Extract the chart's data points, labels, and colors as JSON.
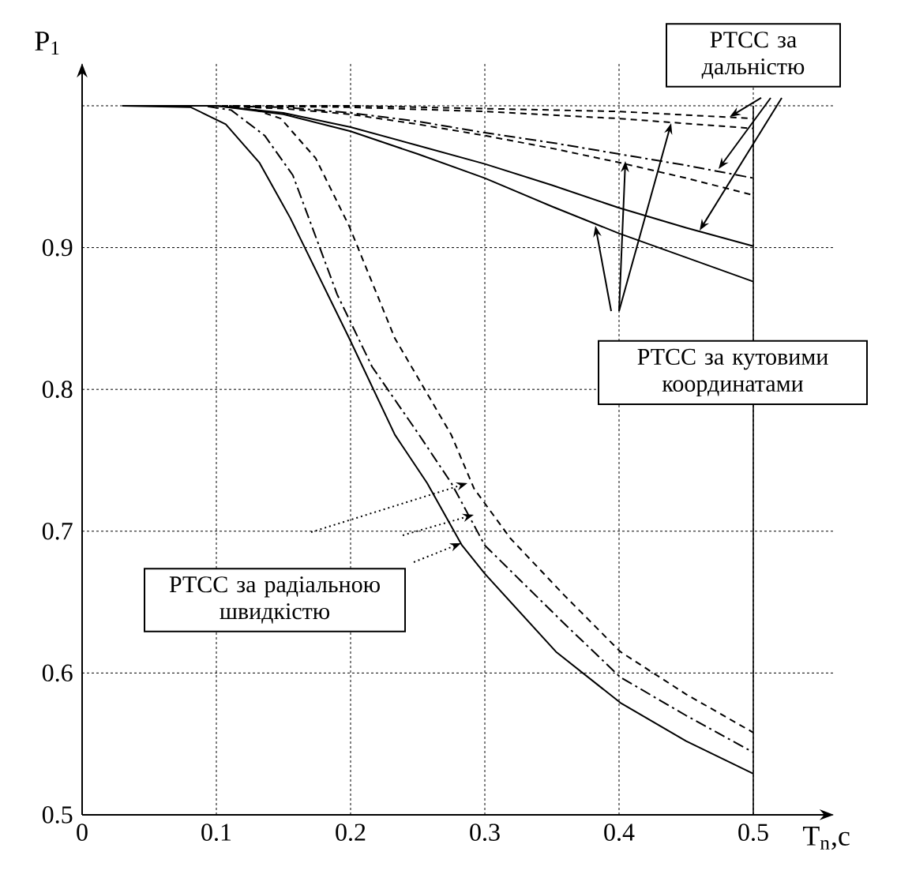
{
  "chart_data": {
    "type": "line",
    "xlabel": "T$_{n}$,c",
    "ylabel": "P$_{1}$",
    "xlim": [
      0,
      0.56
    ],
    "ylim": [
      0.5,
      1.03
    ],
    "ref_lines": [
      {
        "axis": "x",
        "value": 0.5,
        "color": "#000000",
        "line_style": "solid"
      }
    ],
    "xticks": [
      0,
      0.1,
      0.2,
      0.3,
      0.4,
      0.5
    ],
    "yticks": [
      0.5,
      0.6,
      0.7,
      0.8,
      0.9,
      {
        "value": 1.0,
        "label": null
      }
    ],
    "grid": true,
    "annotations": [
      "РТСС за дальністю",
      "РТСС за кутовими координатами",
      "РТСС за радіальною швидкістю"
    ],
    "series": [
      {
        "color": "#000000",
        "line_style": "dashed",
        "x": [
          0.03,
          0.1,
          0.2,
          0.3,
          0.4,
          0.5
        ],
        "values": [
          1.0,
          1.0,
          1.0,
          0.998,
          0.996,
          0.991
        ]
      },
      {
        "color": "#000000",
        "line_style": "dashed",
        "x": [
          0.03,
          0.1,
          0.2,
          0.3,
          0.4,
          0.5
        ],
        "values": [
          1.0,
          1.0,
          0.999,
          0.996,
          0.991,
          0.984
        ]
      },
      {
        "color": "#000000",
        "line_style": "dashdot",
        "x": [
          0.03,
          0.1,
          0.15,
          0.2,
          0.25,
          0.3,
          0.35,
          0.4,
          0.45,
          0.5
        ],
        "values": [
          1.0,
          1.0,
          0.999,
          0.995,
          0.989,
          0.981,
          0.974,
          0.966,
          0.958,
          0.949
        ]
      },
      {
        "color": "#000000",
        "line_style": "dashed",
        "x": [
          0.03,
          0.1,
          0.15,
          0.2,
          0.25,
          0.3,
          0.35,
          0.4,
          0.45,
          0.5
        ],
        "values": [
          1.0,
          1.0,
          0.998,
          0.994,
          0.987,
          0.979,
          0.97,
          0.96,
          0.949,
          0.937
        ]
      },
      {
        "color": "#000000",
        "line_style": "solid",
        "x": [
          0.03,
          0.1,
          0.15,
          0.2,
          0.25,
          0.3,
          0.35,
          0.4,
          0.45,
          0.5
        ],
        "values": [
          1.0,
          1.0,
          0.995,
          0.985,
          0.972,
          0.959,
          0.944,
          0.928,
          0.914,
          0.901
        ]
      },
      {
        "color": "#000000",
        "line_style": "solid",
        "x": [
          0.03,
          0.1,
          0.15,
          0.2,
          0.25,
          0.3,
          0.35,
          0.4,
          0.45,
          0.5
        ],
        "values": [
          1.0,
          1.0,
          0.994,
          0.982,
          0.966,
          0.949,
          0.929,
          0.91,
          0.893,
          0.876
        ]
      },
      {
        "color": "#000000",
        "line_style": "solid",
        "x": [
          0.03,
          0.081,
          0.107,
          0.132,
          0.155,
          0.199,
          0.233,
          0.257,
          0.283,
          0.3,
          0.353,
          0.401,
          0.45,
          0.5
        ],
        "values": [
          1.0,
          0.999,
          0.987,
          0.96,
          0.921,
          0.836,
          0.768,
          0.734,
          0.69,
          0.67,
          0.615,
          0.579,
          0.552,
          0.529
        ]
      },
      {
        "color": "#000000",
        "line_style": "dashdot",
        "x": [
          0.03,
          0.09,
          0.111,
          0.136,
          0.157,
          0.19,
          0.216,
          0.251,
          0.275,
          0.3,
          0.359,
          0.401,
          0.45,
          0.5
        ],
        "values": [
          1.0,
          1.0,
          0.997,
          0.979,
          0.951,
          0.867,
          0.816,
          0.768,
          0.734,
          0.69,
          0.635,
          0.597,
          0.57,
          0.544
        ]
      },
      {
        "color": "#000000",
        "line_style": "dashed",
        "x": [
          0.03,
          0.12,
          0.148,
          0.174,
          0.199,
          0.233,
          0.275,
          0.292,
          0.319,
          0.359,
          0.401,
          0.45,
          0.5
        ],
        "values": [
          1.0,
          1.0,
          0.991,
          0.963,
          0.915,
          0.836,
          0.768,
          0.73,
          0.695,
          0.655,
          0.615,
          0.585,
          0.558
        ]
      }
    ]
  }
}
